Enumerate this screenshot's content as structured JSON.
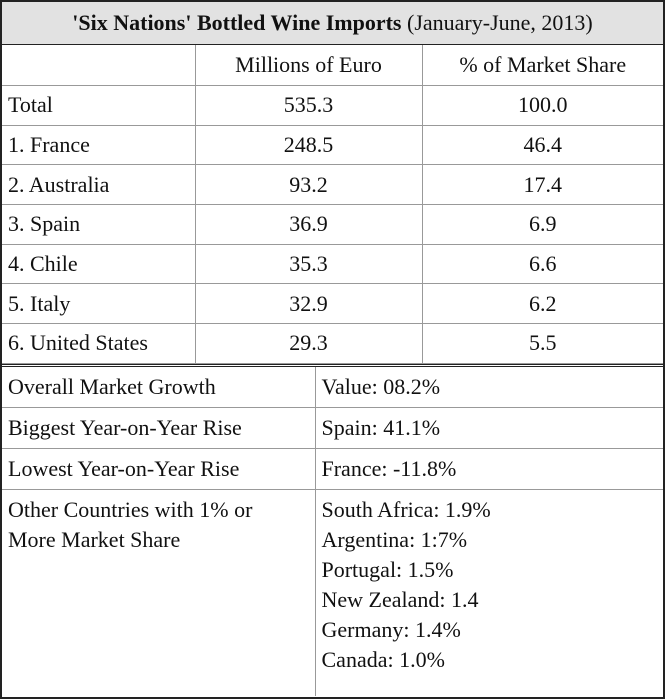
{
  "header": {
    "title_bold": "'Six Nations' Bottled Wine Imports",
    "title_rest": "(January-June, 2013)"
  },
  "table": {
    "columns": [
      "Millions of Euro",
      "% of Market Share"
    ],
    "rows": [
      [
        "Total",
        "535.3",
        "100.0"
      ],
      [
        "1. France",
        "248.5",
        "46.4"
      ],
      [
        "2. Australia",
        "93.2",
        "17.4"
      ],
      [
        "3. Spain",
        "36.9",
        "6.9"
      ],
      [
        "4. Chile",
        "35.3",
        "6.6"
      ],
      [
        "5. Italy",
        "32.9",
        "6.2"
      ],
      [
        "6. United States",
        "29.3",
        "5.5"
      ]
    ]
  },
  "summary": {
    "rows": [
      {
        "label": "Overall Market Growth",
        "values": [
          "Value: 08.2%"
        ]
      },
      {
        "label": "Biggest Year-on-Year Rise",
        "values": [
          "Spain: 41.1%"
        ]
      },
      {
        "label": "Lowest Year-on-Year Rise",
        "values": [
          "France: -11.8%"
        ]
      },
      {
        "label": "Other Countries with 1% or More Market Share",
        "values": [
          "South Africa: 1.9%",
          "Argentina: 1:7%",
          "Portugal: 1.5%",
          "New Zealand: 1.4",
          "Germany: 1.4%",
          "Canada: 1.0%"
        ]
      }
    ]
  }
}
